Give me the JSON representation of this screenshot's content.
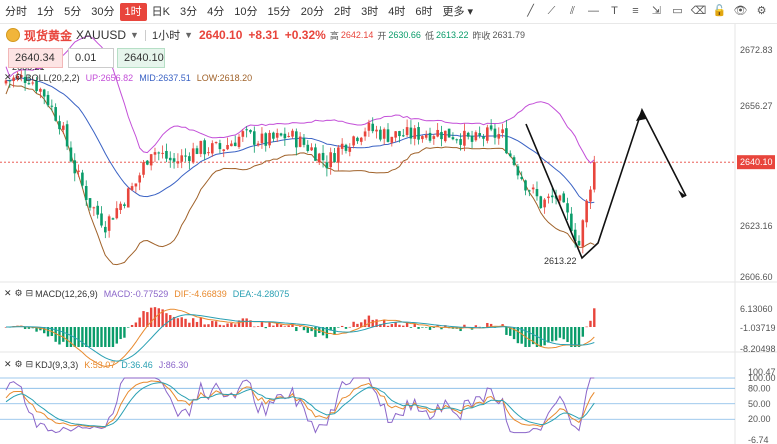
{
  "toolbar": {
    "timeframes": [
      "分时",
      "1分",
      "5分",
      "30分",
      "1时",
      "日K",
      "3分",
      "4分",
      "10分",
      "15分",
      "20分",
      "2时",
      "3时",
      "4时",
      "6时",
      "更多"
    ],
    "active_index": 4,
    "tools": [
      "trend-line-icon",
      "ray-icon",
      "parallel-lines-icon",
      "horizontal-line-icon",
      "text-icon",
      "fib-icon",
      "measure-icon",
      "rectangle-icon",
      "eraser-icon",
      "lock-icon",
      "eye-icon",
      "settings-icon"
    ]
  },
  "header": {
    "name": "现货黄金",
    "symbol": "XAUUSD",
    "period": "1小时",
    "price": "2640.10",
    "change": "+8.31",
    "change_pct": "+0.32%",
    "high_label": "高",
    "high": "2642.14",
    "open_label": "开",
    "open": "2630.66",
    "low_label": "低",
    "low": "2613.22",
    "prev_label": "昨收",
    "prev": "2631.79"
  },
  "order": {
    "sell": "2640.34",
    "qty": "0.01",
    "buy": "2640.10"
  },
  "price_axis": {
    "labels": [
      "2672.83",
      "2656.27",
      "2640.10",
      "2623.16",
      "2606.60"
    ],
    "current": "2640.10",
    "current_color": "#e8453c"
  },
  "boll": {
    "title": "BOLL(20,2,2)",
    "up": "UP:2656.82",
    "mid": "MID:2637.51",
    "low": "LOW:2618.20",
    "up_color": "#c34fd8",
    "mid_color": "#3a62c4",
    "low_color": "#a0622a"
  },
  "annotations": {
    "high_mark": "2666.21",
    "low_mark": "2613.22"
  },
  "macd": {
    "title": "MACD(12,26,9)",
    "macd": "MACD:-0.77529",
    "dif": "DIF:-4.66839",
    "dea": "DEA:-4.28075",
    "axis": [
      "6.13060",
      "-1.03719",
      "-8.20498"
    ],
    "macd_color": "#8b66c9",
    "dif_color": "#e88a2e",
    "dea_color": "#2aa0b3"
  },
  "kdj": {
    "title": "KDJ(9,3,3)",
    "k": "K:53.07",
    "d": "D:36.46",
    "j": "J:86.30",
    "axis": [
      "100.00",
      "80.00",
      "50.00",
      "20.00",
      "-6.74"
    ],
    "right_extra": "100.47",
    "k_color": "#e88a2e",
    "d_color": "#2aa0b3",
    "j_color": "#8b66c9"
  },
  "colors": {
    "up": "#e8453c",
    "down": "#0a9c6a",
    "accent": "#e8453c"
  }
}
